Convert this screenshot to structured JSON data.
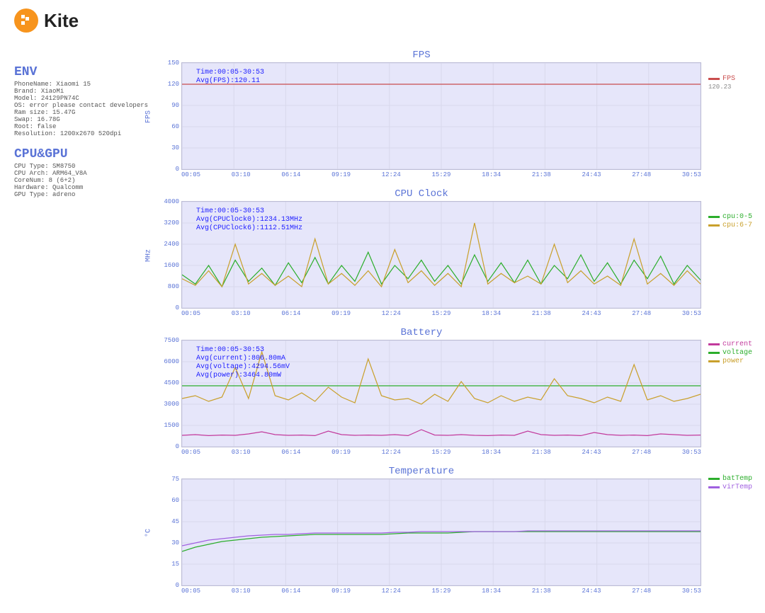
{
  "logo": {
    "wordmark": "Kite"
  },
  "env": {
    "heading": "ENV",
    "PhoneName": "Xiaomi 15",
    "Brand": "XiaoMi",
    "Model": "24129PN74C",
    "OS": "error please contact developers",
    "Ram_size": "15.47G",
    "Swap": "16.78G",
    "Root": "false",
    "Resolution": "1200x2670 520dpi"
  },
  "cpugpu": {
    "heading": "CPU&GPU",
    "CPU_Type": "SM8750",
    "CPU_Arch": "ARM64_V8A",
    "CoreNum": "8 (6+2)",
    "Hardware": "Qualcomm",
    "GPU_Type": "adreno"
  },
  "axes": {
    "x_ticks": [
      "00:05",
      "03:10",
      "06:14",
      "09:19",
      "12:24",
      "15:29",
      "18:34",
      "21:38",
      "24:43",
      "27:48",
      "30:53"
    ],
    "fps": {
      "min": 0,
      "max": 150,
      "step": 30,
      "label": "FPS"
    },
    "cpu": {
      "min": 0,
      "max": 4000,
      "step": 800,
      "label": "MHz"
    },
    "bat": {
      "min": 0,
      "max": 7500,
      "step": 1500,
      "label": ""
    },
    "tmp": {
      "min": 0,
      "max": 75,
      "step": 15,
      "label": "°C"
    }
  },
  "charts": {
    "fps": {
      "title": "FPS",
      "type": "line",
      "anno": [
        "Time:00:05-30:53",
        "Avg(FPS):120.11"
      ],
      "series": [
        {
          "name": "FPS",
          "color": "#c94d4d",
          "stat": "120.23",
          "data": [
            120,
            120,
            120,
            120,
            120,
            120,
            120,
            120,
            120,
            120,
            120,
            120,
            120,
            120,
            120,
            120,
            120,
            120,
            120,
            120
          ]
        }
      ]
    },
    "cpu": {
      "title": "CPU Clock",
      "type": "line",
      "anno": [
        "Time:00:05-30:53",
        "Avg(CPUClock0):1234.13MHz",
        "Avg(CPUClock6):1112.51MHz"
      ],
      "series": [
        {
          "name": "cpu:0-5",
          "color": "#2cae2c",
          "data": [
            1250,
            900,
            1600,
            800,
            1800,
            1000,
            1500,
            850,
            1700,
            950,
            1900,
            900,
            1600,
            1000,
            2100,
            900,
            1600,
            1100,
            1800,
            1000,
            1600,
            900,
            2000,
            1000,
            1700,
            950,
            1800,
            900,
            1600,
            1100,
            2000,
            1000,
            1700,
            900,
            1800,
            1100,
            1950,
            900,
            1600,
            1050
          ]
        },
        {
          "name": "cpu:6-7",
          "color": "#c9a02c",
          "data": [
            1100,
            850,
            1400,
            800,
            2400,
            900,
            1300,
            850,
            1200,
            800,
            2600,
            900,
            1300,
            850,
            1400,
            800,
            2200,
            950,
            1400,
            850,
            1300,
            800,
            3200,
            900,
            1300,
            950,
            1200,
            900,
            2400,
            950,
            1400,
            900,
            1200,
            850,
            2600,
            900,
            1300,
            850,
            1400,
            900
          ]
        }
      ]
    },
    "bat": {
      "title": "Battery",
      "type": "line",
      "anno": [
        "Time:00:05-30:53",
        "Avg(current):806.80mA",
        "Avg(voltage):4294.56mV",
        "Avg(power):3464.80mW"
      ],
      "series": [
        {
          "name": "current",
          "color": "#c23a9c",
          "data": [
            800,
            850,
            780,
            820,
            800,
            900,
            1050,
            850,
            800,
            820,
            780,
            1100,
            850,
            800,
            820,
            800,
            850,
            780,
            1200,
            820,
            800,
            850,
            800,
            780,
            820,
            800,
            1100,
            850,
            800,
            820,
            780,
            1000,
            850,
            800,
            820,
            780,
            900,
            850,
            800,
            820
          ]
        },
        {
          "name": "voltage",
          "color": "#2cae2c",
          "data": [
            4300,
            4300,
            4300,
            4300,
            4300,
            4300,
            4300,
            4300,
            4300,
            4300,
            4300,
            4300,
            4300,
            4300,
            4300,
            4300,
            4300,
            4300,
            4300,
            4300
          ]
        },
        {
          "name": "power",
          "color": "#c9a02c",
          "data": [
            3400,
            3600,
            3200,
            3500,
            5600,
            3400,
            6700,
            3600,
            3300,
            3800,
            3200,
            4200,
            3500,
            3100,
            6200,
            3600,
            3300,
            3400,
            3000,
            3700,
            3200,
            4600,
            3400,
            3100,
            3600,
            3200,
            3500,
            3300,
            4800,
            3600,
            3400,
            3100,
            3500,
            3200,
            5800,
            3300,
            3600,
            3200,
            3400,
            3700
          ]
        }
      ]
    },
    "tmp": {
      "title": "Temperature",
      "type": "line",
      "anno": [],
      "series": [
        {
          "name": "batTemp",
          "color": "#2cae2c",
          "data": [
            24,
            27,
            29,
            31,
            32,
            33,
            34,
            34.5,
            35,
            35.5,
            36,
            36,
            36,
            36,
            36,
            36,
            36.5,
            37,
            37,
            37,
            37,
            37.5,
            38,
            38,
            38,
            38,
            38,
            38,
            38,
            38,
            38,
            38,
            38,
            38,
            38,
            38,
            38,
            38,
            38,
            38
          ]
        },
        {
          "name": "virTemp",
          "color": "#a060e0",
          "data": [
            28,
            30,
            32,
            33,
            34,
            35,
            35.5,
            36,
            36,
            36.5,
            37,
            37,
            37,
            37,
            37,
            37,
            37.5,
            37.5,
            38,
            38,
            38,
            38,
            38,
            38,
            38,
            38,
            38.5,
            38.5,
            38.5,
            38.5,
            38.5,
            38.5,
            38.5,
            38.5,
            38.5,
            38.5,
            38.5,
            38.5,
            38.5,
            38.5
          ]
        }
      ]
    }
  },
  "colors": {
    "plot_bg": "#e6e6fa",
    "grid": "#d8d8ec",
    "axis_text": "#5a73d6",
    "anno": "#2020ff"
  }
}
